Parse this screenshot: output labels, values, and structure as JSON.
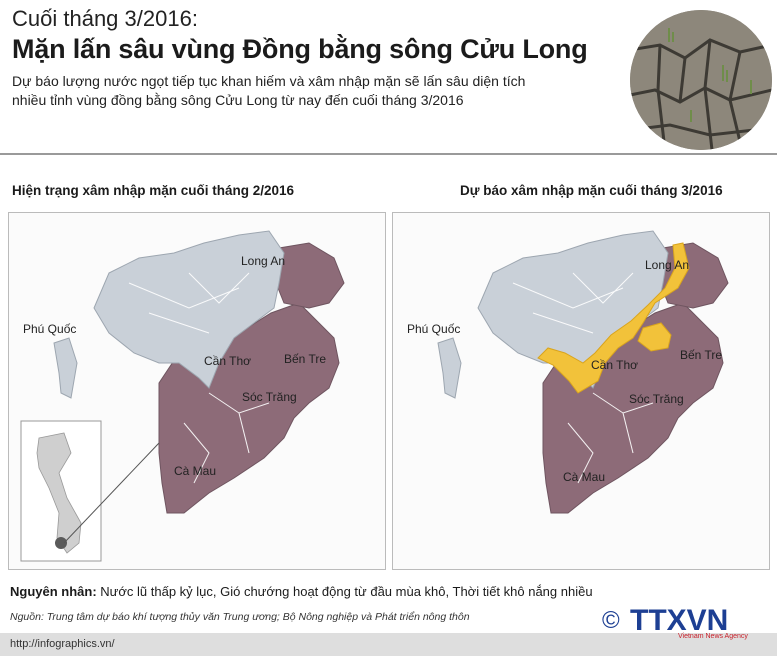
{
  "header": {
    "kicker": "Cuối tháng 3/2016:",
    "title": "Mặn lấn sâu vùng Đồng bằng sông Cửu Long",
    "subtitle_line1": "Dự báo lượng nước ngọt tiếp tục khan hiếm và xâm nhập mặn sẽ lấn sâu diện tích",
    "subtitle_line2": "nhiều tỉnh vùng đồng bằng sông Cửu Long từ nay đến cuối tháng 3/2016"
  },
  "panels": {
    "left": {
      "title": "Hiện trạng xâm nhập mặn cuối tháng 2/2016",
      "labels": {
        "long_an": "Long An",
        "phu_quoc": "Phú Quốc",
        "can_tho": "Cần Thơ",
        "ben_tre": "Bến Tre",
        "soc_trang": "Sóc Trăng",
        "ca_mau": "Cà Mau"
      }
    },
    "right": {
      "title": "Dự báo xâm nhập mặn cuối tháng 3/2016",
      "labels": {
        "long_an": "Long An",
        "phu_quoc": "Phú Quốc",
        "can_tho": "Cần Thơ",
        "ben_tre": "Bến Tre",
        "soc_trang": "Sóc Trăng",
        "ca_mau": "Cà Mau"
      }
    }
  },
  "colors": {
    "fresh": "#c9d0d8",
    "salt": "#8d6b78",
    "forecast": "#f2c23a",
    "vietnam_inset": "#cfcfcf"
  },
  "footer": {
    "cause_label": "Nguyên nhân:",
    "cause_text": " Nước lũ thấp kỷ lục, Gió chướng hoạt động từ đầu mùa khô, Thời tiết khô nắng nhiều",
    "source": "Nguồn: Trung tâm dự báo khí tượng thủy văn Trung ương; Bộ Nông nghiệp và Phát triển nông thôn",
    "url": "http://infographics.vn/",
    "logo_mark": "©",
    "logo_text": "TTXVN",
    "logo_sub": "Vietnam News Agency"
  }
}
